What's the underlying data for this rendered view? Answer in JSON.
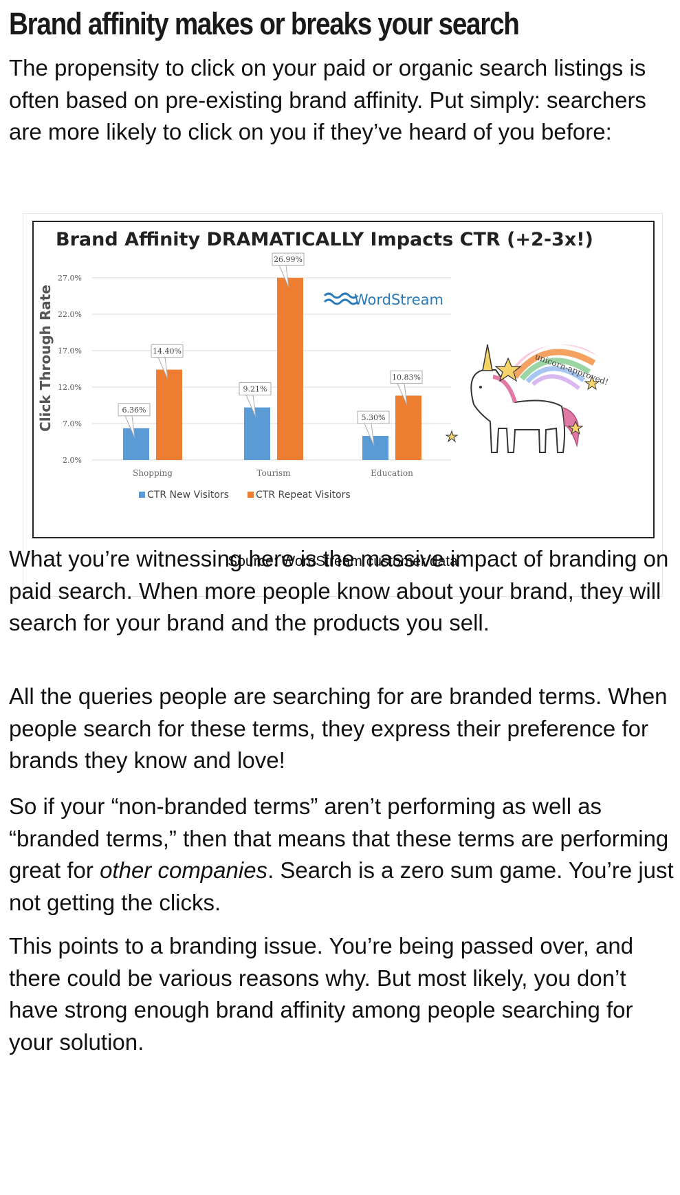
{
  "article": {
    "heading": "Brand affinity makes or breaks your search",
    "intro": "The propensity to click on your paid or organic search listings is often based on pre-existing brand affinity. Put simply: searchers are more likely to click on you if they’ve heard of you before:",
    "figure_caption": "Source: WordStream customer data",
    "para2": "What you’re witnessing here is the massive impact of branding on paid search. When more people know about your brand, they will search for your brand and the products you sell.",
    "para3": "All the queries people are searching for are branded terms. When people search for these terms, they express their preference for brands they know and love!",
    "para4_before": "So if your “non-branded terms” aren’t performing as well as “branded terms,” then that means that these terms are performing great for ",
    "para4_em": "other companies",
    "para4_after": ". Search is a zero sum game. You’re just not getting the clicks.",
    "para5": "This points to a branding issue. You’re being passed over, and there could be various reasons why. But most likely, you don’t have strong enough brand affinity among people searching for your solution."
  },
  "chart_data": {
    "type": "bar",
    "title": "Brand Affinity DRAMATICALLY Impacts CTR (+2-3x!)",
    "ylabel": "Click Through Rate",
    "xlabel": "",
    "categories": [
      "Shopping",
      "Tourism",
      "Education"
    ],
    "ylim": [
      2.0,
      27.0
    ],
    "yticks": [
      "2.0%",
      "7.0%",
      "12.0%",
      "17.0%",
      "22.0%",
      "27.0%"
    ],
    "ytick_values": [
      2,
      7,
      12,
      17,
      22,
      27
    ],
    "series": [
      {
        "name": "CTR New Visitors",
        "color": "#5b9bd5",
        "values": [
          6.36,
          9.21,
          5.3
        ],
        "labels": [
          "6.36%",
          "9.21%",
          "5.30%"
        ]
      },
      {
        "name": "CTR Repeat Visitors",
        "color": "#ed7d31",
        "values": [
          14.4,
          26.99,
          10.83
        ],
        "labels": [
          "14.40%",
          "26.99%",
          "10.83%"
        ]
      }
    ],
    "legend_position": "bottom",
    "grid": true,
    "logo_text": "WordStream",
    "sticker_text": "unicorn-approved!"
  },
  "colors": {
    "new_visitors": "#5b9bd5",
    "repeat_visitors": "#ed7d31",
    "logo_blue": "#2b7bb9"
  }
}
